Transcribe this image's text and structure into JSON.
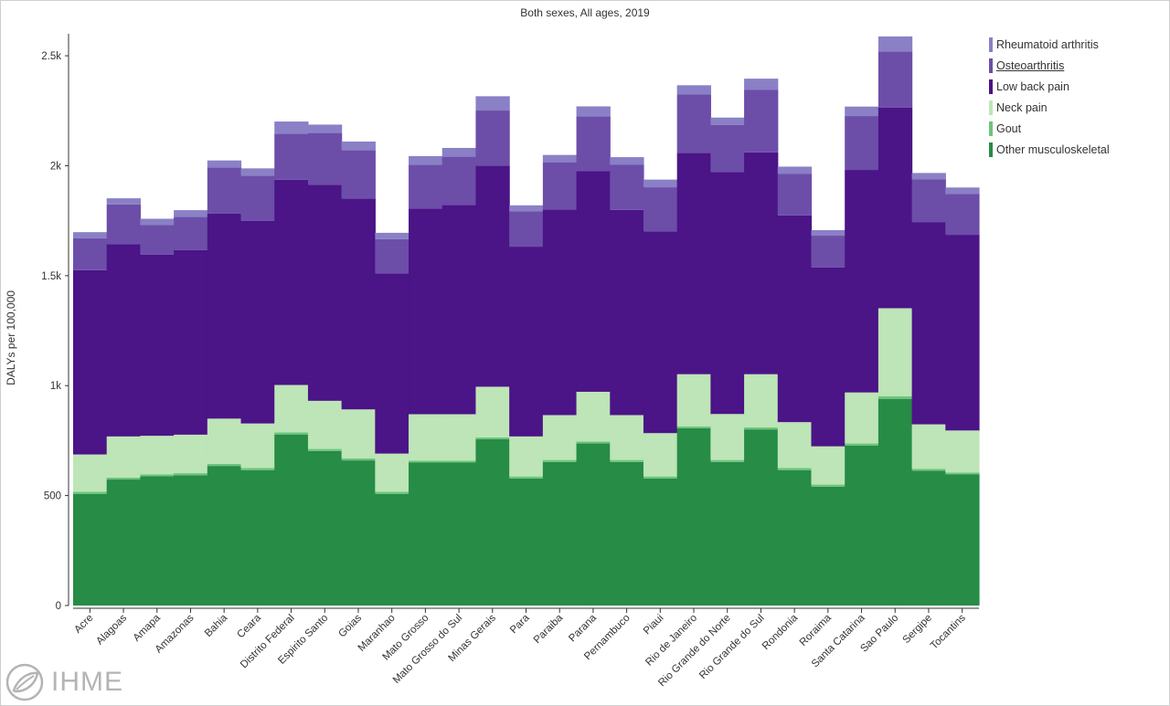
{
  "chart_data": {
    "type": "bar",
    "stacked": true,
    "title": "Both sexes, All ages, 2019",
    "ylabel": "DALYs per 100,000",
    "xlabel": "",
    "ylim": [
      0,
      2600
    ],
    "yticks": [
      0,
      500,
      1000,
      1500,
      2000,
      2500
    ],
    "ytick_labels": [
      "0",
      "500",
      "1k",
      "1.5k",
      "2k",
      "2.5k"
    ],
    "grid": false,
    "legend_position": "top-right",
    "categories": [
      "Acre",
      "Alagoas",
      "Amapa",
      "Amazonas",
      "Bahia",
      "Ceara",
      "Distrito Federal",
      "Espirito Santo",
      "Goias",
      "Maranhao",
      "Mato Grosso",
      "Mato Grosso do Sul",
      "Minas Gerais",
      "Para",
      "Paraiba",
      "Parana",
      "Pernambuco",
      "Piaui",
      "Rio de Janeiro",
      "Rio Grande do Norte",
      "Rio Grande do Sul",
      "Rondonia",
      "Roraima",
      "Santa Catarina",
      "Sao Paulo",
      "Sergipe",
      "Tocantins"
    ],
    "series": [
      {
        "name": "Other musculoskeletal",
        "color": "#268c46",
        "values": [
          508,
          573,
          588,
          593,
          635,
          616,
          778,
          703,
          660,
          508,
          650,
          650,
          756,
          578,
          653,
          737,
          653,
          578,
          806,
          653,
          801,
          616,
          541,
          728,
          940,
          613,
          596
        ]
      },
      {
        "name": "Gout",
        "color": "#6cc47c",
        "values": [
          9,
          9,
          9,
          9,
          9,
          9,
          9,
          9,
          9,
          9,
          9,
          9,
          9,
          9,
          9,
          9,
          9,
          9,
          9,
          9,
          9,
          9,
          9,
          9,
          12,
          9,
          9
        ]
      },
      {
        "name": "Neck pain",
        "color": "#bde5b7",
        "values": [
          170,
          187,
          175,
          175,
          206,
          203,
          216,
          219,
          223,
          174,
          211,
          211,
          230,
          182,
          204,
          226,
          204,
          197,
          237,
          209,
          242,
          209,
          174,
          232,
          400,
          202,
          191
        ]
      },
      {
        "name": "Low back pain",
        "color": "#4b1487",
        "values": [
          838,
          875,
          823,
          840,
          932,
          922,
          933,
          983,
          959,
          820,
          935,
          951,
          1006,
          863,
          935,
          1003,
          933,
          918,
          1007,
          1100,
          1009,
          940,
          813,
          1012,
          913,
          920,
          890
        ]
      },
      {
        "name": "Osteoarthritis",
        "color": "#6c4ea8",
        "values": [
          145,
          180,
          135,
          150,
          210,
          205,
          210,
          235,
          220,
          155,
          200,
          220,
          250,
          160,
          215,
          250,
          205,
          200,
          265,
          215,
          285,
          190,
          145,
          245,
          255,
          195,
          185
        ]
      },
      {
        "name": "Rheumatoid arthritis",
        "color": "#8a80c6",
        "values": [
          28,
          28,
          29,
          31,
          32,
          33,
          55,
          38,
          39,
          29,
          39,
          40,
          65,
          28,
          33,
          45,
          35,
          35,
          42,
          33,
          50,
          32,
          25,
          43,
          68,
          28,
          30
        ]
      }
    ]
  },
  "legend": {
    "items": [
      {
        "label": "Rheumatoid arthritis",
        "color": "#8a80c6"
      },
      {
        "label": "Osteoarthritis",
        "color": "#6c4ea8"
      },
      {
        "label": "Low back pain",
        "color": "#4b1487"
      },
      {
        "label": "Neck pain",
        "color": "#bde5b7"
      },
      {
        "label": "Gout",
        "color": "#6cc47c"
      },
      {
        "label": "Other musculoskeletal",
        "color": "#268c46"
      }
    ]
  },
  "logo": {
    "text": "IHME"
  }
}
